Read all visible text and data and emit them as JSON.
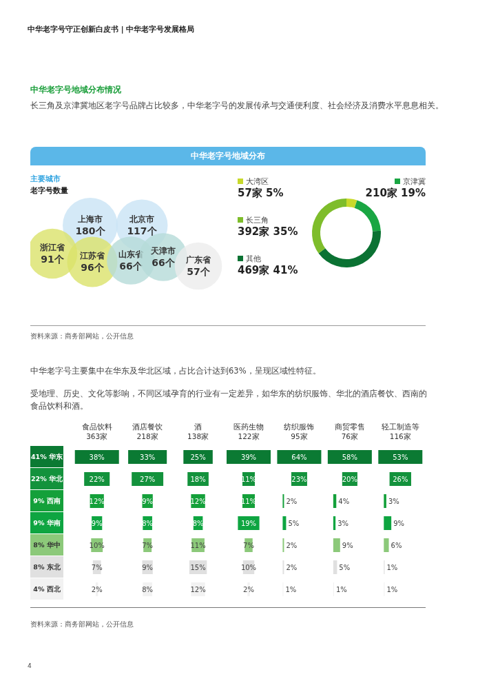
{
  "chart_data": [
    {
      "type": "other",
      "title": "中华老字号地域分布情况",
      "subtitle": "长三角及京津冀地区老字号品牌占比较多，中华老字号的发展传承与交通便利度、社会经济及消费水平息息相关。",
      "annotations": [
        "中华老字号守正创新白皮书 | 中华老字号发展格局"
      ]
    },
    {
      "type": "other",
      "title": "中华老字号地域分布",
      "subtitle": "主要城市",
      "ylabel": "老字号数量",
      "categories": [
        "上海市",
        "北京市",
        "浙江省",
        "江苏省",
        "山东省",
        "天津市",
        "广东省"
      ],
      "values": [
        180,
        117,
        91,
        96,
        66,
        66,
        57
      ],
      "value_labels": [
        "180个",
        "117个",
        "91个",
        "96个",
        "66个",
        "66个",
        "57个"
      ],
      "colors": [
        "#c9e3f5",
        "#c9e3f5",
        "#dbe26a",
        "#dbe26a",
        "#b5dbd8",
        "#b5dbd8",
        "#ececec"
      ],
      "annotations": [
        "资料来源：商务部网站，公开信息"
      ]
    },
    {
      "type": "donut",
      "categories": [
        "大湾区",
        "京津冀",
        "其他",
        "长三角"
      ],
      "values": [
        5,
        19,
        41,
        35
      ],
      "value_labels": [
        "57家 5%",
        "210家 19%",
        "469家 41%",
        "392家 35%"
      ],
      "colors": [
        "#c8d92b",
        "#1aa643",
        "#0b7233",
        "#7ebd2b"
      ],
      "legend": "left"
    },
    {
      "type": "heatmap",
      "title": "中华老字号主要集中在华东及华北区域，占比合计达到63%，呈现区域性特征。",
      "subtitle": "受地理、历史、文化等影响，不同区域孕育的行业有一定差异，如华东的纺织服饰、华北的酒店餐饮、西南的食品饮料和酒。",
      "categories": [
        "食品饮料 363家",
        "酒店餐饮 218家",
        "酒 138家",
        "医药生物 122家",
        "纺织服饰 95家",
        "商贸零售 76家",
        "轻工制造等 116家"
      ],
      "y_categories": [
        "41% 华东",
        "22% 华北",
        "9% 西南",
        "9% 华南",
        "8% 华中",
        "8% 东北",
        "4% 西北"
      ],
      "cells": [
        [
          38,
          33,
          25,
          39,
          64,
          58,
          53
        ],
        [
          22,
          27,
          18,
          11,
          23,
          20,
          26
        ],
        [
          12,
          9,
          12,
          11,
          2,
          4,
          3
        ],
        [
          9,
          8,
          8,
          19,
          5,
          3,
          9
        ],
        [
          10,
          7,
          11,
          7,
          2,
          9,
          6
        ],
        [
          7,
          9,
          15,
          10,
          2,
          5,
          1
        ],
        [
          2,
          8,
          12,
          2,
          1,
          1,
          1
        ]
      ],
      "cell_labels": [
        [
          "38%",
          "33%",
          "25%",
          "39%",
          "64%",
          "58%",
          "53%"
        ],
        [
          "22%",
          "27%",
          "18%",
          "11%",
          "23%",
          "20%",
          "26%"
        ],
        [
          "12%",
          "9%",
          "12%",
          "11%",
          "2%",
          "4%",
          "3%"
        ],
        [
          "9%",
          "8%",
          "8%",
          "19%",
          "5%",
          "3%",
          "9%"
        ],
        [
          "10%",
          "7%",
          "11%",
          "7%",
          "2%",
          "9%",
          "6%"
        ],
        [
          "7%",
          "9%",
          "15%",
          "10%",
          "2%",
          "5%",
          "1%"
        ],
        [
          "2%",
          "8%",
          "12%",
          "2%",
          "1%",
          "1%",
          "1%"
        ]
      ],
      "colors": [
        "#0b7a33",
        "#13923c",
        "#14a03a",
        "#0ea541",
        "#8cc97a",
        "#e0e0e0",
        "#f2f2f2"
      ],
      "annotations": [
        "资料来源：商务部网站，公开信息",
        "4"
      ]
    }
  ]
}
